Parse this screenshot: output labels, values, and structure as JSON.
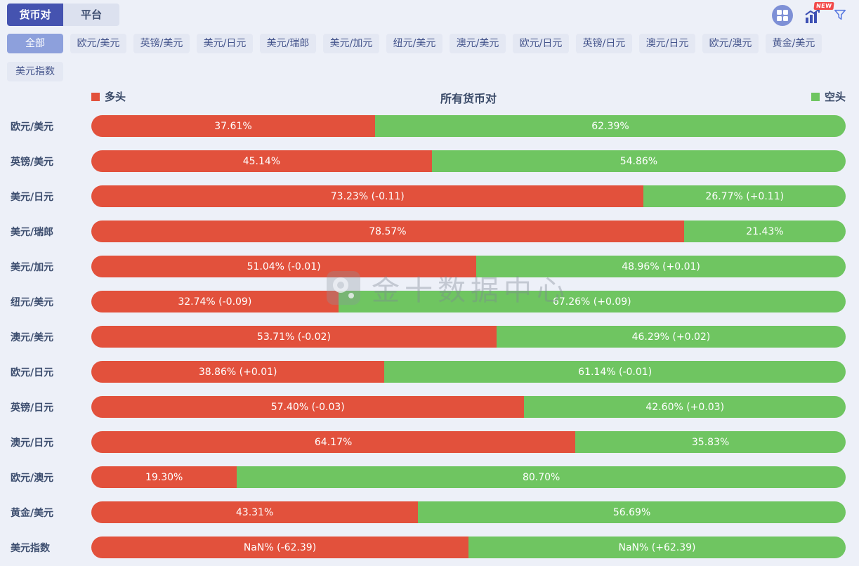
{
  "page": {
    "background": "#edf0f8"
  },
  "header": {
    "tabs": [
      {
        "label": "货币对",
        "active": true
      },
      {
        "label": "平台",
        "active": false
      }
    ],
    "toolbar": {
      "grid_button": "grid-icon",
      "trend_button": "trend-chart-icon",
      "trend_badge": "NEW",
      "filter_button": "funnel-icon"
    }
  },
  "filters": {
    "active": "全部",
    "row1": [
      "全部",
      "欧元/美元",
      "英镑/美元",
      "美元/日元",
      "美元/瑞郎",
      "美元/加元",
      "纽元/美元",
      "澳元/美元",
      "欧元/日元",
      "英镑/日元",
      "澳元/日元",
      "欧元/澳元",
      "黄金/美元"
    ],
    "row2": [
      "美元指数"
    ]
  },
  "chart_data": {
    "type": "bar",
    "subtype": "horizontal-stacked-100pct",
    "title": "所有货币对",
    "legend": [
      {
        "label": "多头",
        "color": "#e2513c",
        "position": "left"
      },
      {
        "label": "空头",
        "color": "#6fc561",
        "position": "right"
      }
    ],
    "colors": {
      "long": "#e2513c",
      "short": "#6fc561"
    },
    "rows": [
      {
        "pair": "欧元/美元",
        "long_pct": 37.61,
        "long_label": "37.61%",
        "short_pct": 62.39,
        "short_label": "62.39%"
      },
      {
        "pair": "英镑/美元",
        "long_pct": 45.14,
        "long_label": "45.14%",
        "short_pct": 54.86,
        "short_label": "54.86%"
      },
      {
        "pair": "美元/日元",
        "long_pct": 73.23,
        "long_label": "73.23% (-0.11)",
        "short_pct": 26.77,
        "short_label": "26.77% (+0.11)"
      },
      {
        "pair": "美元/瑞郎",
        "long_pct": 78.57,
        "long_label": "78.57%",
        "short_pct": 21.43,
        "short_label": "21.43%"
      },
      {
        "pair": "美元/加元",
        "long_pct": 51.04,
        "long_label": "51.04% (-0.01)",
        "short_pct": 48.96,
        "short_label": "48.96% (+0.01)"
      },
      {
        "pair": "纽元/美元",
        "long_pct": 32.74,
        "long_label": "32.74% (-0.09)",
        "short_pct": 67.26,
        "short_label": "67.26% (+0.09)"
      },
      {
        "pair": "澳元/美元",
        "long_pct": 53.71,
        "long_label": "53.71% (-0.02)",
        "short_pct": 46.29,
        "short_label": "46.29% (+0.02)"
      },
      {
        "pair": "欧元/日元",
        "long_pct": 38.86,
        "long_label": "38.86% (+0.01)",
        "short_pct": 61.14,
        "short_label": "61.14% (-0.01)"
      },
      {
        "pair": "英镑/日元",
        "long_pct": 57.4,
        "long_label": "57.40% (-0.03)",
        "short_pct": 42.6,
        "short_label": "42.60% (+0.03)"
      },
      {
        "pair": "澳元/日元",
        "long_pct": 64.17,
        "long_label": "64.17%",
        "short_pct": 35.83,
        "short_label": "35.83%"
      },
      {
        "pair": "欧元/澳元",
        "long_pct": 19.3,
        "long_label": "19.30%",
        "short_pct": 80.7,
        "short_label": "80.70%"
      },
      {
        "pair": "黄金/美元",
        "long_pct": 43.31,
        "long_label": "43.31%",
        "short_pct": 56.69,
        "short_label": "56.69%"
      },
      {
        "pair": "美元指数",
        "long_pct": 50.0,
        "long_label": "NaN% (-62.39)",
        "short_pct": 50.0,
        "short_label": "NaN% (+62.39)"
      }
    ]
  },
  "watermark": {
    "text": "金十数据中心"
  }
}
